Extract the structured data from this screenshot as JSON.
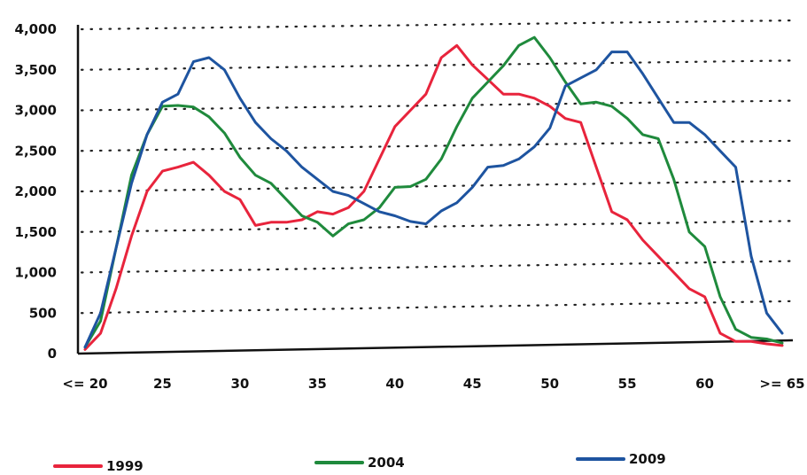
{
  "chart_data": {
    "type": "line",
    "title": "",
    "xlabel": "",
    "ylabel": "",
    "ylim": [
      0,
      4000
    ],
    "xlim": [
      20,
      65
    ],
    "y_ticks": [
      0,
      500,
      1000,
      1500,
      2000,
      2500,
      3000,
      3500,
      4000
    ],
    "y_tick_labels": [
      "0",
      "500",
      "1,000",
      "1,500",
      "2,000",
      "2,500",
      "3,000",
      "3,500",
      "4,000"
    ],
    "x_ticks": [
      20,
      25,
      30,
      35,
      40,
      45,
      50,
      55,
      60,
      65
    ],
    "x_tick_labels": [
      "<= 20",
      "25",
      "30",
      "35",
      "40",
      "45",
      "50",
      "55",
      "60",
      ">= 65"
    ],
    "grid": "horizontal dotted",
    "legend_position": "bottom",
    "series": [
      {
        "name": "1999",
        "color": "#e8243c",
        "x": [
          20,
          21,
          22,
          23,
          24,
          25,
          26,
          27,
          28,
          29,
          30,
          31,
          32,
          33,
          34,
          35,
          36,
          37,
          38,
          39,
          40,
          41,
          42,
          43,
          44,
          45,
          46,
          47,
          48,
          49,
          50,
          51,
          52,
          53,
          54,
          55,
          56,
          57,
          58,
          59,
          60,
          61,
          62,
          63,
          64,
          65
        ],
        "y": [
          50,
          250,
          800,
          1450,
          2000,
          2250,
          2300,
          2360,
          2200,
          2000,
          1900,
          1580,
          1620,
          1620,
          1650,
          1750,
          1720,
          1800,
          2000,
          2400,
          2800,
          3000,
          3200,
          3650,
          3800,
          3560,
          3380,
          3200,
          3200,
          3150,
          3050,
          2900,
          2850,
          2300,
          1750,
          1650,
          1400,
          1200,
          1000,
          800,
          700,
          250,
          150,
          150,
          120,
          100
        ]
      },
      {
        "name": "2004",
        "color": "#1f8a3c",
        "x": [
          20,
          21,
          22,
          23,
          24,
          25,
          26,
          27,
          28,
          29,
          30,
          31,
          32,
          33,
          34,
          35,
          36,
          37,
          38,
          39,
          40,
          41,
          42,
          43,
          44,
          45,
          46,
          47,
          48,
          49,
          50,
          51,
          52,
          53,
          54,
          55,
          56,
          57,
          58,
          59,
          60,
          61,
          62,
          63,
          64,
          65
        ],
        "y": [
          80,
          400,
          1300,
          2200,
          2700,
          3050,
          3060,
          3040,
          2920,
          2720,
          2420,
          2200,
          2100,
          1900,
          1700,
          1620,
          1450,
          1600,
          1650,
          1800,
          2050,
          2060,
          2150,
          2400,
          2800,
          3150,
          3350,
          3550,
          3800,
          3900,
          3650,
          3350,
          3080,
          3100,
          3050,
          2900,
          2700,
          2650,
          2150,
          1500,
          1320,
          700,
          300,
          200,
          180,
          130
        ]
      },
      {
        "name": "2009",
        "color": "#1e54a0",
        "x": [
          20,
          21,
          22,
          23,
          24,
          25,
          26,
          27,
          28,
          29,
          30,
          31,
          32,
          33,
          34,
          35,
          36,
          37,
          38,
          39,
          40,
          41,
          42,
          43,
          44,
          45,
          46,
          47,
          48,
          49,
          50,
          51,
          52,
          53,
          54,
          55,
          56,
          57,
          58,
          59,
          60,
          61,
          62,
          63,
          64,
          65
        ],
        "y": [
          80,
          500,
          1300,
          2100,
          2700,
          3100,
          3200,
          3600,
          3650,
          3500,
          3150,
          2850,
          2650,
          2500,
          2300,
          2150,
          2000,
          1950,
          1850,
          1750,
          1700,
          1630,
          1600,
          1760,
          1860,
          2050,
          2300,
          2320,
          2400,
          2550,
          2780,
          3300,
          3400,
          3500,
          3720,
          3720,
          3450,
          3150,
          2850,
          2850,
          2700,
          2500,
          2300,
          1200,
          500,
          250
        ]
      }
    ]
  }
}
